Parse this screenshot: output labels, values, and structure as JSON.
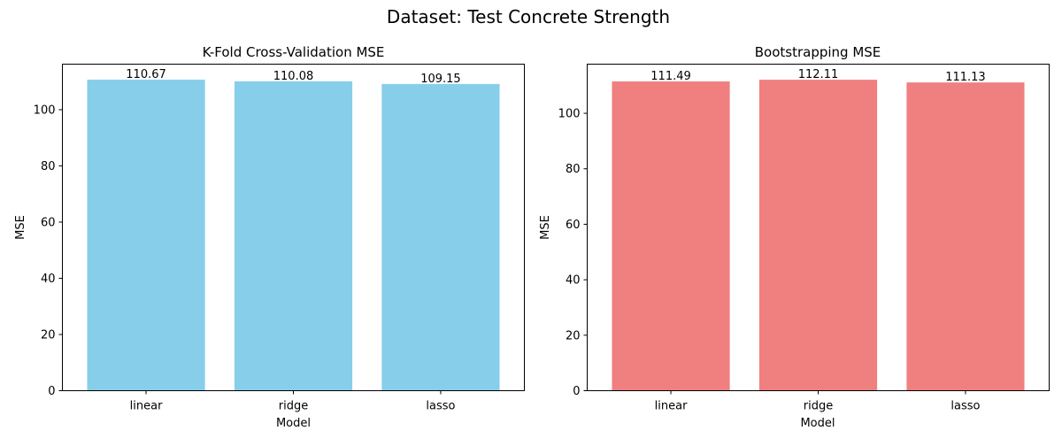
{
  "suptitle": "Dataset: Test Concrete Strength",
  "chart_data": [
    {
      "type": "bar",
      "title": "K-Fold Cross-Validation MSE",
      "xlabel": "Model",
      "ylabel": "MSE",
      "categories": [
        "linear",
        "ridge",
        "lasso"
      ],
      "values": [
        110.67,
        110.08,
        109.15
      ],
      "value_labels": [
        "110.67",
        "110.08",
        "109.15"
      ],
      "yticks": [
        "0",
        "20",
        "40",
        "60",
        "80",
        "100"
      ],
      "ylim": [
        0,
        116.2
      ],
      "color": "#87ceeb",
      "grid": false,
      "legend": "none"
    },
    {
      "type": "bar",
      "title": "Bootstrapping MSE",
      "xlabel": "Model",
      "ylabel": "MSE",
      "categories": [
        "linear",
        "ridge",
        "lasso"
      ],
      "values": [
        111.49,
        112.11,
        111.13
      ],
      "value_labels": [
        "111.49",
        "112.11",
        "111.13"
      ],
      "yticks": [
        "0",
        "20",
        "40",
        "60",
        "80",
        "100"
      ],
      "ylim": [
        0,
        117.72
      ],
      "color": "#f08080",
      "grid": false,
      "legend": "none"
    }
  ]
}
